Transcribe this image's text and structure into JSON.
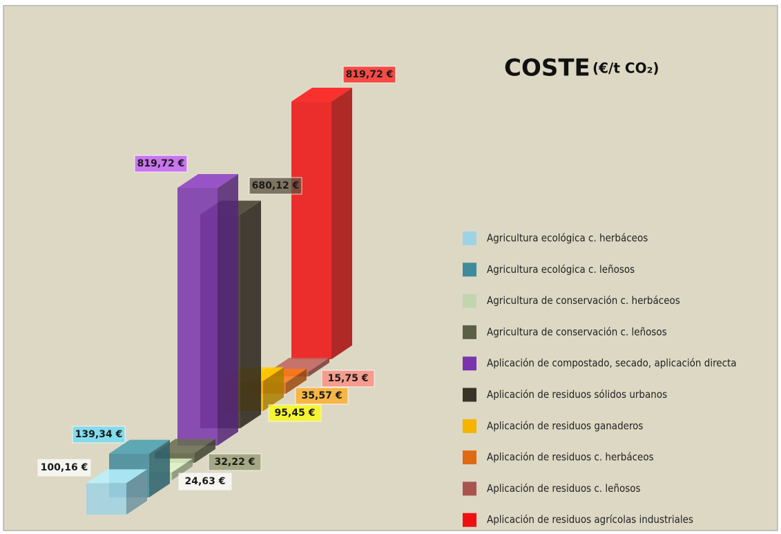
{
  "chart_data": {
    "type": "bar3d",
    "title": "COSTE",
    "subtitle": "(€/t CO₂)",
    "series": [
      {
        "name": "Agricultura ecológica c. herbáceos",
        "color": "#9fd3e4",
        "values": [
          100.16
        ],
        "value_labels": [
          "100,16 €"
        ]
      },
      {
        "name": "Agricultura ecológica c. leñosos",
        "color": "#3f8a9b",
        "values": [
          139.34
        ],
        "value_labels": [
          "139,34 €"
        ]
      },
      {
        "name": "Agricultura de conservación c. herbáceos",
        "color": "#c3d5ae",
        "values": [
          24.63
        ],
        "value_labels": [
          "24,63 €"
        ]
      },
      {
        "name": "Agricultura de conservación c. leñosos",
        "color": "#5b5f46",
        "values": [
          32.22
        ],
        "value_labels": [
          "32,22 €"
        ]
      },
      {
        "name": "Aplicación de compostado, secado, aplicación directa",
        "color": "#7a35ad",
        "values": [
          819.72
        ],
        "value_labels": [
          "819,72 €"
        ]
      },
      {
        "name": "Aplicación de residuos sólidos urbanos",
        "color": "#3a3428",
        "values": [
          680.12
        ],
        "value_labels": [
          "680,12 €"
        ]
      },
      {
        "name": "Aplicación de residuos ganaderos",
        "color": "#f4b400",
        "values": [
          95.45
        ],
        "value_labels": [
          "95,45 €"
        ]
      },
      {
        "name": "Aplicación de residuos c. herbáceos",
        "color": "#df6a12",
        "values": [
          35.57
        ],
        "value_labels": [
          "35,57 €"
        ]
      },
      {
        "name": "Aplicación de residuos c. leñosos",
        "color": "#a9554e",
        "values": [
          15.75
        ],
        "value_labels": [
          "15,75 €"
        ]
      },
      {
        "name": "Aplicación de residuos agrícolas industriales",
        "color": "#ee1111",
        "values": [
          819.72
        ],
        "value_labels": [
          "819,72 €"
        ]
      }
    ]
  }
}
